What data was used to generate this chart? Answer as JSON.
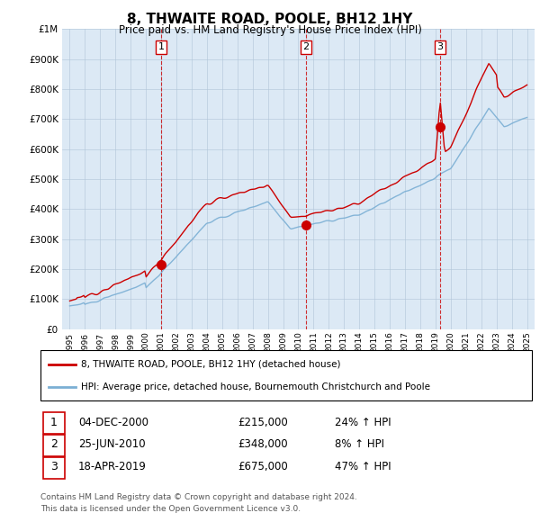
{
  "title": "8, THWAITE ROAD, POOLE, BH12 1HY",
  "subtitle": "Price paid vs. HM Land Registry's House Price Index (HPI)",
  "legend_line1": "8, THWAITE ROAD, POOLE, BH12 1HY (detached house)",
  "legend_line2": "HPI: Average price, detached house, Bournemouth Christchurch and Poole",
  "footnote1": "Contains HM Land Registry data © Crown copyright and database right 2024.",
  "footnote2": "This data is licensed under the Open Government Licence v3.0.",
  "sale_color": "#cc0000",
  "hpi_color": "#7bafd4",
  "background_color": "#ffffff",
  "chart_bg_color": "#dce9f5",
  "grid_color": "#b0c4d8",
  "ylim": [
    0,
    1000000
  ],
  "yticks": [
    0,
    100000,
    200000,
    300000,
    400000,
    500000,
    600000,
    700000,
    800000,
    900000,
    1000000
  ],
  "ytick_labels": [
    "£0",
    "£100K",
    "£200K",
    "£300K",
    "£400K",
    "£500K",
    "£600K",
    "£700K",
    "£800K",
    "£900K",
    "£1M"
  ],
  "sales": [
    {
      "date_num": 2001.0,
      "price": 215000,
      "label": "1"
    },
    {
      "date_num": 2010.5,
      "price": 348000,
      "label": "2"
    },
    {
      "date_num": 2019.3,
      "price": 675000,
      "label": "3"
    }
  ],
  "sale_labels": [
    {
      "label": "1",
      "date": "04-DEC-2000",
      "price": "£215,000",
      "hpi": "24% ↑ HPI"
    },
    {
      "label": "2",
      "date": "25-JUN-2010",
      "price": "£348,000",
      "hpi": "8% ↑ HPI"
    },
    {
      "label": "3",
      "date": "18-APR-2019",
      "price": "£675,000",
      "hpi": "47% ↑ HPI"
    }
  ],
  "xlim": [
    1994.5,
    2025.5
  ],
  "xticks": [
    1995,
    1996,
    1997,
    1998,
    1999,
    2000,
    2001,
    2002,
    2003,
    2004,
    2005,
    2006,
    2007,
    2008,
    2009,
    2010,
    2011,
    2012,
    2013,
    2014,
    2015,
    2016,
    2017,
    2018,
    2019,
    2020,
    2021,
    2022,
    2023,
    2024,
    2025
  ]
}
